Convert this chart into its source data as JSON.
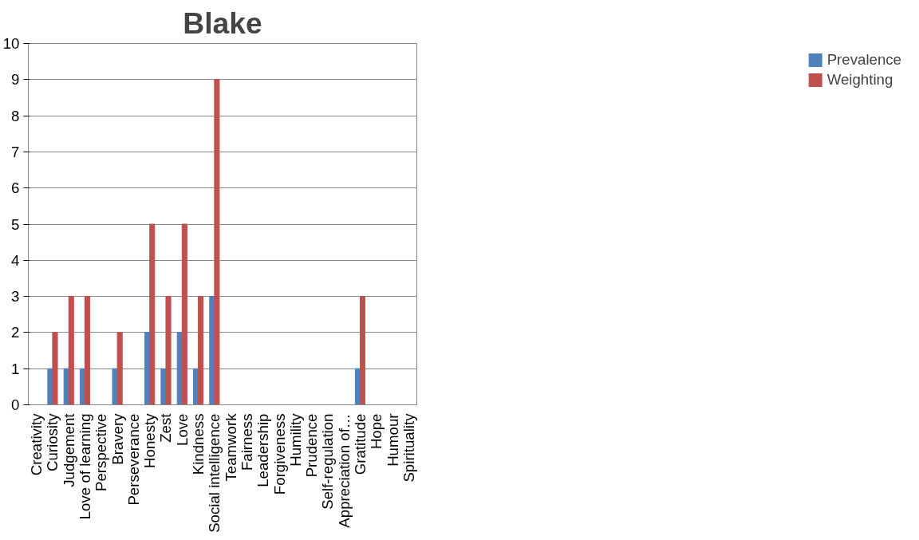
{
  "chart_data": {
    "type": "bar",
    "title": "Blake",
    "categories": [
      "Creativity",
      "Curiosity",
      "Judgement",
      "Love of learning",
      "Perspective",
      "Bravery",
      "Perseverance",
      "Honesty",
      "Zest",
      "Love",
      "Kindness",
      "Social intelligence",
      "Teamwork",
      "Fairness",
      "Leadership",
      "Forgiveness",
      "Humility",
      "Prudence",
      "Self-regulation",
      "Appreciation of…",
      "Gratitude",
      "Hope",
      "Humour",
      "Spirituality"
    ],
    "series": [
      {
        "name": "Prevalence",
        "color": "#4f81bd",
        "values": [
          0,
          1,
          1,
          1,
          0,
          1,
          0,
          2,
          1,
          2,
          1,
          3,
          0,
          0,
          0,
          0,
          0,
          0,
          0,
          0,
          1,
          0,
          0,
          0
        ]
      },
      {
        "name": "Weighting",
        "color": "#c0504d",
        "values": [
          0,
          2,
          3,
          3,
          0,
          2,
          0,
          5,
          3,
          5,
          3,
          9,
          0,
          0,
          0,
          0,
          0,
          0,
          0,
          0,
          3,
          0,
          0,
          0
        ]
      }
    ],
    "ylim": [
      0,
      10
    ],
    "yticks": [
      0,
      1,
      2,
      3,
      4,
      5,
      6,
      7,
      8,
      9,
      10
    ],
    "grid": "y",
    "legend": "right"
  }
}
